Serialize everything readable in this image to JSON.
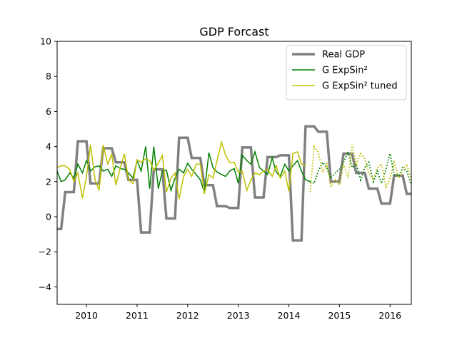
{
  "chart_data": {
    "type": "line",
    "title": "GDP Forcast",
    "xlabel": "",
    "ylabel": "",
    "xlim": [
      2009.42,
      2016.42
    ],
    "ylim": [
      -5,
      10
    ],
    "x_ticks": [
      2010,
      2011,
      2012,
      2013,
      2014,
      2015,
      2016
    ],
    "y_ticks": [
      -4,
      -2,
      0,
      2,
      4,
      6,
      8,
      10
    ],
    "grid": false,
    "legend_position": "top-right",
    "colors": {
      "real": "#808080",
      "model": "#008000",
      "tuned": "#bfbf00"
    },
    "series": [
      {
        "name": "Real GDP",
        "style": "solid",
        "points": [
          [
            2009.42,
            -0.7
          ],
          [
            2009.5,
            -0.7
          ],
          [
            2009.58,
            1.4
          ],
          [
            2009.75,
            1.4
          ],
          [
            2009.83,
            4.3
          ],
          [
            2010.0,
            4.3
          ],
          [
            2010.08,
            1.9
          ],
          [
            2010.25,
            1.9
          ],
          [
            2010.33,
            3.9
          ],
          [
            2010.5,
            3.9
          ],
          [
            2010.58,
            3.1
          ],
          [
            2010.75,
            3.1
          ],
          [
            2010.83,
            2.1
          ],
          [
            2011.0,
            2.1
          ],
          [
            2011.08,
            -0.9
          ],
          [
            2011.25,
            -0.9
          ],
          [
            2011.33,
            2.7
          ],
          [
            2011.5,
            2.7
          ],
          [
            2011.58,
            -0.1
          ],
          [
            2011.75,
            -0.1
          ],
          [
            2011.83,
            4.5
          ],
          [
            2012.0,
            4.5
          ],
          [
            2012.08,
            3.35
          ],
          [
            2012.25,
            3.35
          ],
          [
            2012.33,
            1.8
          ],
          [
            2012.5,
            1.8
          ],
          [
            2012.58,
            0.6
          ],
          [
            2012.75,
            0.6
          ],
          [
            2012.83,
            0.5
          ],
          [
            2013.0,
            0.5
          ],
          [
            2013.08,
            3.95
          ],
          [
            2013.25,
            3.95
          ],
          [
            2013.33,
            1.1
          ],
          [
            2013.5,
            1.1
          ],
          [
            2013.58,
            3.4
          ],
          [
            2013.75,
            3.4
          ],
          [
            2013.83,
            3.5
          ],
          [
            2014.0,
            3.5
          ],
          [
            2014.08,
            -1.35
          ],
          [
            2014.25,
            -1.35
          ],
          [
            2014.33,
            5.15
          ],
          [
            2014.5,
            5.15
          ],
          [
            2014.58,
            4.85
          ],
          [
            2014.75,
            4.85
          ],
          [
            2014.83,
            2.0
          ],
          [
            2015.0,
            2.0
          ],
          [
            2015.08,
            3.6
          ],
          [
            2015.25,
            3.6
          ],
          [
            2015.33,
            2.5
          ],
          [
            2015.5,
            2.5
          ],
          [
            2015.58,
            1.6
          ],
          [
            2015.75,
            1.6
          ],
          [
            2015.83,
            0.75
          ],
          [
            2016.0,
            0.75
          ],
          [
            2016.08,
            2.35
          ],
          [
            2016.25,
            2.35
          ],
          [
            2016.33,
            1.3
          ],
          [
            2016.42,
            1.3
          ]
        ]
      },
      {
        "name": "G ExpSin²",
        "style": "solid",
        "points": [
          [
            2009.42,
            2.6
          ],
          [
            2009.5,
            2.0
          ],
          [
            2009.58,
            2.1
          ],
          [
            2009.67,
            2.5
          ],
          [
            2009.75,
            2.2
          ],
          [
            2009.83,
            3.0
          ],
          [
            2009.92,
            2.5
          ],
          [
            2010.0,
            3.2
          ],
          [
            2010.08,
            2.6
          ],
          [
            2010.17,
            2.85
          ],
          [
            2010.25,
            2.9
          ],
          [
            2010.33,
            2.6
          ],
          [
            2010.42,
            2.7
          ],
          [
            2010.5,
            2.3
          ],
          [
            2010.58,
            2.9
          ],
          [
            2010.67,
            2.75
          ],
          [
            2010.75,
            2.7
          ],
          [
            2010.83,
            2.5
          ],
          [
            2010.92,
            2.2
          ],
          [
            2011.0,
            3.2
          ],
          [
            2011.08,
            2.6
          ],
          [
            2011.17,
            4.0
          ],
          [
            2011.25,
            1.6
          ],
          [
            2011.33,
            4.0
          ],
          [
            2011.42,
            1.6
          ],
          [
            2011.5,
            2.6
          ],
          [
            2011.58,
            2.65
          ],
          [
            2011.67,
            1.5
          ],
          [
            2011.75,
            2.2
          ],
          [
            2011.83,
            2.7
          ],
          [
            2011.92,
            2.5
          ],
          [
            2012.0,
            3.05
          ],
          [
            2012.08,
            2.7
          ],
          [
            2012.17,
            2.4
          ],
          [
            2012.25,
            2.1
          ],
          [
            2012.33,
            1.4
          ],
          [
            2012.42,
            3.65
          ],
          [
            2012.5,
            2.8
          ],
          [
            2012.58,
            2.55
          ],
          [
            2012.67,
            2.4
          ],
          [
            2012.75,
            2.3
          ],
          [
            2012.83,
            2.6
          ],
          [
            2012.92,
            2.75
          ],
          [
            2013.0,
            1.9
          ],
          [
            2013.08,
            3.5
          ],
          [
            2013.17,
            3.2
          ],
          [
            2013.25,
            3.0
          ],
          [
            2013.33,
            3.7
          ],
          [
            2013.42,
            2.8
          ],
          [
            2013.5,
            2.6
          ],
          [
            2013.58,
            2.4
          ],
          [
            2013.67,
            3.35
          ],
          [
            2013.75,
            2.55
          ],
          [
            2013.83,
            2.3
          ],
          [
            2013.92,
            3.0
          ],
          [
            2014.0,
            2.6
          ],
          [
            2014.08,
            2.9
          ],
          [
            2014.17,
            3.2
          ],
          [
            2014.25,
            2.6
          ],
          [
            2014.33,
            2.1
          ],
          [
            2014.42,
            2.0
          ]
        ]
      },
      {
        "name": "G ExpSin² tuned",
        "style": "solid",
        "points": [
          [
            2009.42,
            2.8
          ],
          [
            2009.5,
            2.9
          ],
          [
            2009.58,
            2.9
          ],
          [
            2009.67,
            2.7
          ],
          [
            2009.75,
            2.0
          ],
          [
            2009.83,
            2.5
          ],
          [
            2009.92,
            1.05
          ],
          [
            2010.0,
            2.3
          ],
          [
            2010.08,
            4.1
          ],
          [
            2010.17,
            2.1
          ],
          [
            2010.25,
            1.5
          ],
          [
            2010.33,
            4.1
          ],
          [
            2010.42,
            3.0
          ],
          [
            2010.5,
            3.55
          ],
          [
            2010.58,
            1.8
          ],
          [
            2010.67,
            2.8
          ],
          [
            2010.75,
            3.6
          ],
          [
            2010.83,
            2.1
          ],
          [
            2010.92,
            1.9
          ],
          [
            2011.0,
            3.25
          ],
          [
            2011.08,
            3.1
          ],
          [
            2011.17,
            3.3
          ],
          [
            2011.25,
            3.2
          ],
          [
            2011.33,
            2.65
          ],
          [
            2011.42,
            3.05
          ],
          [
            2011.5,
            3.5
          ],
          [
            2011.58,
            1.4
          ],
          [
            2011.67,
            2.2
          ],
          [
            2011.75,
            2.5
          ],
          [
            2011.83,
            1.0
          ],
          [
            2011.92,
            2.3
          ],
          [
            2012.0,
            2.7
          ],
          [
            2012.08,
            2.3
          ],
          [
            2012.17,
            3.0
          ],
          [
            2012.25,
            3.0
          ],
          [
            2012.33,
            1.3
          ],
          [
            2012.42,
            2.4
          ],
          [
            2012.5,
            2.2
          ],
          [
            2012.58,
            3.2
          ],
          [
            2012.67,
            4.25
          ],
          [
            2012.75,
            3.5
          ],
          [
            2012.83,
            3.1
          ],
          [
            2012.92,
            3.1
          ],
          [
            2013.0,
            2.55
          ],
          [
            2013.08,
            2.6
          ],
          [
            2013.17,
            1.5
          ],
          [
            2013.25,
            2.1
          ],
          [
            2013.33,
            2.5
          ],
          [
            2013.42,
            2.4
          ],
          [
            2013.5,
            2.6
          ],
          [
            2013.58,
            2.7
          ],
          [
            2013.67,
            2.3
          ],
          [
            2013.75,
            2.9
          ],
          [
            2013.83,
            2.2
          ],
          [
            2013.92,
            2.6
          ],
          [
            2014.0,
            1.45
          ],
          [
            2014.08,
            3.6
          ],
          [
            2014.17,
            3.7
          ],
          [
            2014.25,
            3.0
          ],
          [
            2014.33,
            2.9
          ]
        ]
      },
      {
        "name": "",
        "style": "dotted",
        "color_key": "model",
        "points": [
          [
            2014.42,
            2.0
          ],
          [
            2014.5,
            1.9
          ],
          [
            2014.58,
            2.6
          ],
          [
            2014.67,
            3.1
          ],
          [
            2014.75,
            2.8
          ],
          [
            2014.83,
            2.2
          ],
          [
            2014.92,
            2.5
          ],
          [
            2015.0,
            2.7
          ],
          [
            2015.08,
            3.1
          ],
          [
            2015.17,
            3.7
          ],
          [
            2015.25,
            2.8
          ],
          [
            2015.33,
            3.0
          ],
          [
            2015.42,
            2.1
          ],
          [
            2015.5,
            2.8
          ],
          [
            2015.58,
            3.1
          ],
          [
            2015.67,
            2.0
          ],
          [
            2015.75,
            2.6
          ],
          [
            2015.83,
            1.9
          ],
          [
            2015.92,
            2.7
          ],
          [
            2016.0,
            3.6
          ],
          [
            2016.08,
            2.4
          ],
          [
            2016.17,
            2.3
          ],
          [
            2016.25,
            2.8
          ],
          [
            2016.33,
            2.6
          ],
          [
            2016.42,
            1.8
          ]
        ]
      },
      {
        "name": "",
        "style": "dotted",
        "color_key": "tuned",
        "points": [
          [
            2014.42,
            1.4
          ],
          [
            2014.5,
            4.0
          ],
          [
            2014.58,
            3.7
          ],
          [
            2014.67,
            2.5
          ],
          [
            2014.75,
            3.0
          ],
          [
            2014.83,
            1.7
          ],
          [
            2014.92,
            2.1
          ],
          [
            2015.0,
            1.8
          ],
          [
            2015.08,
            3.0
          ],
          [
            2015.17,
            2.2
          ],
          [
            2015.25,
            4.1
          ],
          [
            2015.33,
            3.0
          ],
          [
            2015.42,
            3.6
          ],
          [
            2015.5,
            3.3
          ],
          [
            2015.58,
            2.5
          ],
          [
            2015.67,
            2.1
          ],
          [
            2015.75,
            2.8
          ],
          [
            2015.83,
            3.0
          ],
          [
            2015.92,
            1.7
          ],
          [
            2016.0,
            2.2
          ],
          [
            2016.08,
            3.1
          ],
          [
            2016.17,
            2.2
          ],
          [
            2016.25,
            2.6
          ],
          [
            2016.33,
            3.0
          ],
          [
            2016.42,
            2.1
          ]
        ]
      }
    ]
  }
}
